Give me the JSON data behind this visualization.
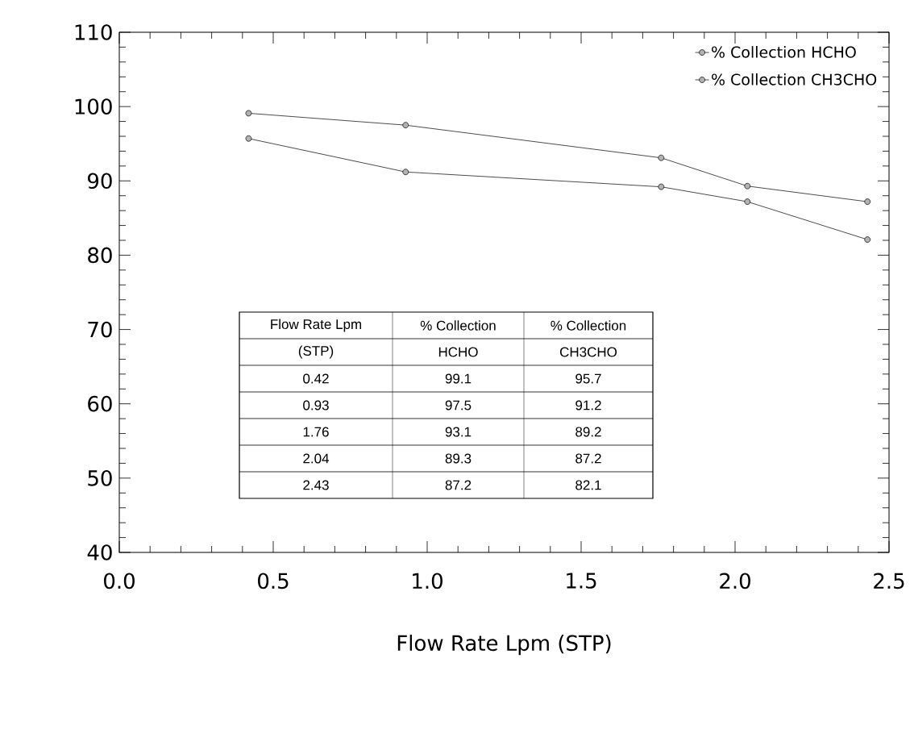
{
  "chart_data": [
    {
      "type": "line",
      "xlabel": "Flow Rate Lpm (STP)",
      "x": [
        0.42,
        0.93,
        1.76,
        2.04,
        2.43
      ],
      "series": [
        {
          "name": "% Collection HCHO",
          "color": "#000000",
          "values": [
            99.1,
            97.5,
            93.1,
            89.3,
            87.2
          ]
        },
        {
          "name": "% Collection CH3CHO",
          "color": "#000000",
          "values": [
            95.7,
            91.2,
            89.2,
            87.2,
            82.1
          ]
        }
      ],
      "xlim": [
        0,
        2.5
      ],
      "ylim": [
        40,
        110
      ],
      "xticks": [
        {
          "value": 0,
          "label": "0.0"
        },
        0.5,
        {
          "value": 1,
          "label": "1.0"
        },
        1.5,
        {
          "value": 2,
          "label": "2.0"
        },
        2.5
      ],
      "yticks": [
        40,
        50,
        60,
        70,
        80,
        90,
        100,
        110
      ],
      "legend": "top right",
      "marker": "circle",
      "line_style": "solid",
      "grid": false
    },
    {
      "type": "other",
      "annotations": [
        "Flow Rate Lpm",
        "% Collection",
        "% Collection",
        "(STP)",
        "HCHO",
        "CH3CHO",
        "0.42",
        "99.1",
        "95.7",
        "0.93",
        "97.5",
        "91.2",
        "1.76",
        "93.1",
        "89.2",
        "2.04",
        "89.3",
        "87.2",
        "2.43",
        "87.2",
        "82.1"
      ]
    }
  ]
}
